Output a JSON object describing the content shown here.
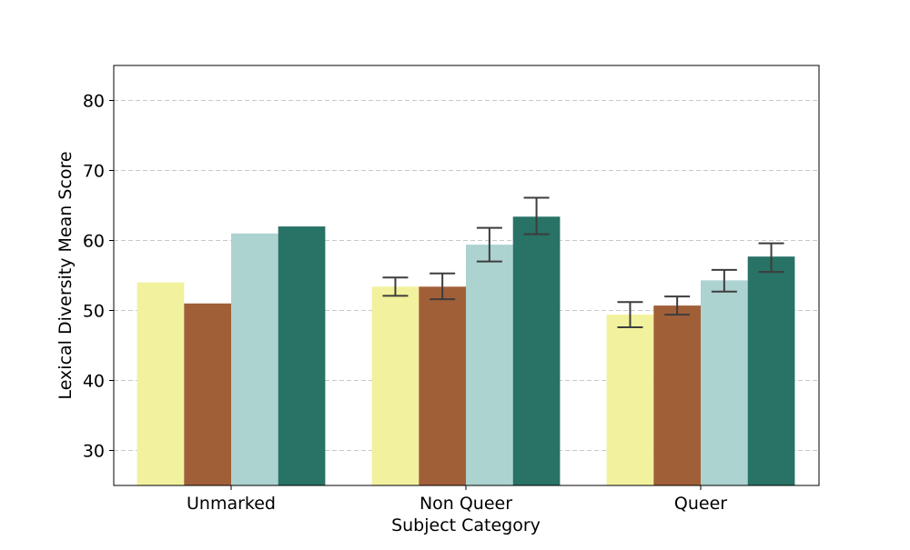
{
  "chart_data": {
    "type": "bar",
    "title": "",
    "xlabel": "Subject Category",
    "ylabel": "Lexical Diversity Mean Score",
    "categories": [
      "Unmarked",
      "Non Queer",
      "Queer"
    ],
    "ylim": [
      25,
      85
    ],
    "yticks": [
      30,
      40,
      50,
      60,
      70,
      80
    ],
    "grid": true,
    "legend": "none",
    "series": [
      {
        "color": "#f2f29e",
        "values": [
          54.0,
          53.4,
          49.4
        ],
        "err_low": [
          null,
          52.1,
          47.6
        ],
        "err_high": [
          null,
          54.7,
          51.2
        ]
      },
      {
        "color": "#a15f38",
        "values": [
          51.0,
          53.4,
          50.7
        ],
        "err_low": [
          null,
          51.6,
          49.4
        ],
        "err_high": [
          null,
          55.3,
          52.0
        ]
      },
      {
        "color": "#acd3d0",
        "values": [
          61.0,
          59.4,
          54.3
        ],
        "err_low": [
          null,
          57.0,
          52.7
        ],
        "err_high": [
          null,
          61.8,
          55.8
        ]
      },
      {
        "color": "#287266",
        "values": [
          62.0,
          63.4,
          57.7
        ],
        "err_low": [
          null,
          60.9,
          55.5
        ],
        "err_high": [
          null,
          66.1,
          59.6
        ]
      }
    ]
  }
}
